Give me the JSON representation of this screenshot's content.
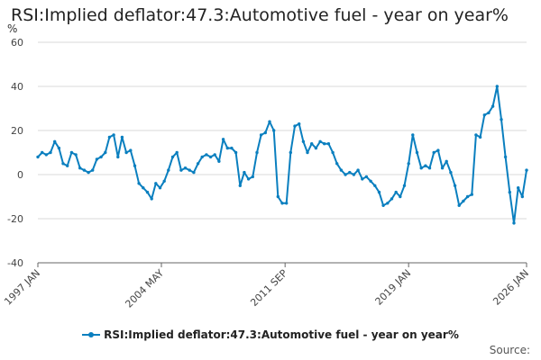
{
  "colors": {
    "series": "#0a7fbf",
    "grid": "#d9d9d9",
    "axis": "#666666"
  },
  "source_label": "Source:",
  "chart_data": {
    "type": "line",
    "title": "RSI:Implied deflator:47.3:Automotive fuel - year on year%",
    "ylabel": "%",
    "xlabel": "",
    "ylim": [
      -40,
      60
    ],
    "yticks": [
      60,
      40,
      20,
      0,
      -20,
      -40
    ],
    "xlim": [
      1997.0,
      2026.0
    ],
    "xticks": [
      {
        "label": "1997 JAN",
        "x": 1997.0
      },
      {
        "label": "2004 MAY",
        "x": 2004.33
      },
      {
        "label": "2011 SEP",
        "x": 2011.67
      },
      {
        "label": "2019 JAN",
        "x": 2019.0
      },
      {
        "label": "2026 JAN",
        "x": 2026.0
      }
    ],
    "grid": true,
    "legend": "bottom",
    "series": [
      {
        "name": "RSI:Implied deflator:47.3:Automotive fuel - year on year%",
        "points": [
          [
            1997.0,
            8
          ],
          [
            1997.25,
            10
          ],
          [
            1997.5,
            9
          ],
          [
            1997.75,
            10
          ],
          [
            1998.0,
            15
          ],
          [
            1998.25,
            12
          ],
          [
            1998.5,
            5
          ],
          [
            1998.75,
            4
          ],
          [
            1999.0,
            10
          ],
          [
            1999.25,
            9
          ],
          [
            1999.5,
            3
          ],
          [
            1999.75,
            2
          ],
          [
            2000.0,
            1
          ],
          [
            2000.25,
            2
          ],
          [
            2000.5,
            7
          ],
          [
            2000.75,
            8
          ],
          [
            2001.0,
            10
          ],
          [
            2001.25,
            17
          ],
          [
            2001.5,
            18
          ],
          [
            2001.75,
            8
          ],
          [
            2002.0,
            17
          ],
          [
            2002.25,
            10
          ],
          [
            2002.5,
            11
          ],
          [
            2002.75,
            4
          ],
          [
            2003.0,
            -4
          ],
          [
            2003.25,
            -6
          ],
          [
            2003.5,
            -8
          ],
          [
            2003.75,
            -11
          ],
          [
            2004.0,
            -4
          ],
          [
            2004.25,
            -6
          ],
          [
            2004.5,
            -3
          ],
          [
            2004.75,
            2
          ],
          [
            2005.0,
            8
          ],
          [
            2005.25,
            10
          ],
          [
            2005.5,
            2
          ],
          [
            2005.75,
            3
          ],
          [
            2006.0,
            2
          ],
          [
            2006.25,
            1
          ],
          [
            2006.5,
            5
          ],
          [
            2006.75,
            8
          ],
          [
            2007.0,
            9
          ],
          [
            2007.25,
            8
          ],
          [
            2007.5,
            9
          ],
          [
            2007.75,
            6
          ],
          [
            2008.0,
            16
          ],
          [
            2008.25,
            12
          ],
          [
            2008.5,
            12
          ],
          [
            2008.75,
            10
          ],
          [
            2009.0,
            -5
          ],
          [
            2009.25,
            1
          ],
          [
            2009.5,
            -2
          ],
          [
            2009.75,
            -1
          ],
          [
            2010.0,
            10
          ],
          [
            2010.25,
            18
          ],
          [
            2010.5,
            19
          ],
          [
            2010.75,
            24
          ],
          [
            2011.0,
            20
          ],
          [
            2011.25,
            -10
          ],
          [
            2011.5,
            -13
          ],
          [
            2011.75,
            -13
          ],
          [
            2012.0,
            10
          ],
          [
            2012.25,
            22
          ],
          [
            2012.5,
            23
          ],
          [
            2012.75,
            15
          ],
          [
            2013.0,
            10
          ],
          [
            2013.25,
            14
          ],
          [
            2013.5,
            12
          ],
          [
            2013.75,
            15
          ],
          [
            2014.0,
            14
          ],
          [
            2014.25,
            14
          ],
          [
            2014.5,
            10
          ],
          [
            2014.75,
            5
          ],
          [
            2015.0,
            2
          ],
          [
            2015.25,
            0
          ],
          [
            2015.5,
            1
          ],
          [
            2015.75,
            0
          ],
          [
            2016.0,
            2
          ],
          [
            2016.25,
            -2
          ],
          [
            2016.5,
            -1
          ],
          [
            2016.75,
            -3
          ],
          [
            2017.0,
            -5
          ],
          [
            2017.25,
            -8
          ],
          [
            2017.5,
            -14
          ],
          [
            2017.75,
            -13
          ],
          [
            2018.0,
            -11
          ],
          [
            2018.25,
            -8
          ],
          [
            2018.5,
            -10
          ],
          [
            2018.75,
            -5
          ],
          [
            2019.0,
            5
          ],
          [
            2019.25,
            18
          ],
          [
            2019.5,
            10
          ],
          [
            2019.75,
            3
          ],
          [
            2020.0,
            4
          ],
          [
            2020.25,
            3
          ],
          [
            2020.5,
            10
          ],
          [
            2020.75,
            11
          ],
          [
            2021.0,
            3
          ],
          [
            2021.25,
            6
          ],
          [
            2021.5,
            1
          ],
          [
            2021.75,
            -5
          ],
          [
            2022.0,
            -14
          ],
          [
            2022.25,
            -12
          ],
          [
            2022.5,
            -10
          ],
          [
            2022.75,
            -9
          ],
          [
            2023.0,
            18
          ],
          [
            2023.25,
            17
          ],
          [
            2023.5,
            27
          ],
          [
            2023.75,
            28
          ],
          [
            2024.0,
            31
          ],
          [
            2024.25,
            40
          ],
          [
            2024.5,
            25
          ],
          [
            2024.75,
            8
          ],
          [
            2025.0,
            -8
          ],
          [
            2025.25,
            -22
          ],
          [
            2025.5,
            -6
          ],
          [
            2025.75,
            -10
          ],
          [
            2026.0,
            2
          ]
        ]
      }
    ]
  }
}
